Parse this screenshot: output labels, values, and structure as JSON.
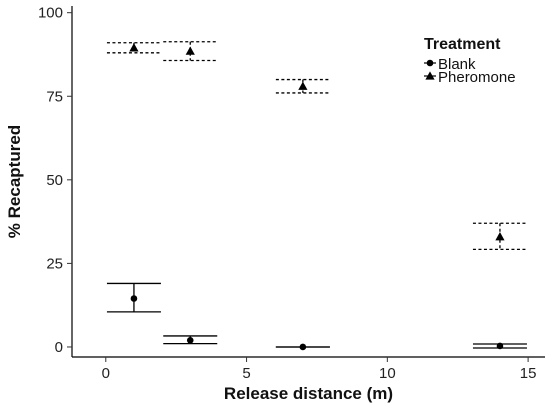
{
  "chart_data": {
    "type": "scatter",
    "title": "",
    "xlabel": "Release distance (m)",
    "ylabel": "% Recaptured",
    "xlim": [
      -1.2,
      15.6
    ],
    "ylim": [
      -3,
      102
    ],
    "xticks": [
      0,
      5,
      10,
      15
    ],
    "yticks": [
      0,
      25,
      50,
      75,
      100
    ],
    "grid": false,
    "legend": {
      "title": "Treatment",
      "placement": "top-right",
      "entries": [
        "Blank",
        "Pheromone"
      ]
    },
    "series": [
      {
        "name": "Blank",
        "marker": "circle",
        "errorbar_style": "solid",
        "points": [
          {
            "x": 1,
            "y": 14.5,
            "ylow": 10.5,
            "yhigh": 19
          },
          {
            "x": 3,
            "y": 2.0,
            "ylow": 1.0,
            "yhigh": 3.3
          },
          {
            "x": 7,
            "y": 0.0,
            "ylow": 0.0,
            "yhigh": 0.0
          },
          {
            "x": 14,
            "y": 0.3,
            "ylow": -0.3,
            "yhigh": 0.9
          }
        ]
      },
      {
        "name": "Pheromone",
        "marker": "triangle",
        "errorbar_style": "dashed",
        "points": [
          {
            "x": 1,
            "y": 89.5,
            "ylow": 88.0,
            "yhigh": 91.0
          },
          {
            "x": 3,
            "y": 88.5,
            "ylow": 85.7,
            "yhigh": 91.3
          },
          {
            "x": 7,
            "y": 78.0,
            "ylow": 76.0,
            "yhigh": 80.0
          },
          {
            "x": 14,
            "y": 33.0,
            "ylow": 29.2,
            "yhigh": 37.0
          }
        ]
      }
    ]
  }
}
